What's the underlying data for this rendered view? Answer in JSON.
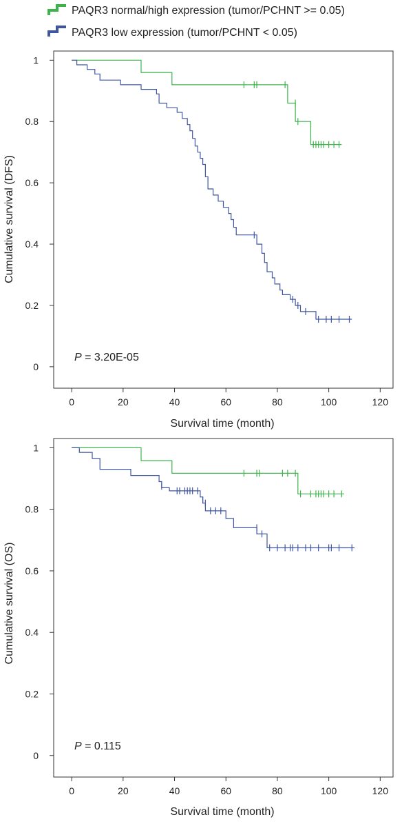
{
  "legend": {
    "items": [
      {
        "label": "PAQR3 normal/high expression (tumor/PCHNT >= 0.05)",
        "color": "#3cb44b"
      },
      {
        "label": "PAQR3 low expression (tumor/PCHNT < 0.05)",
        "color": "#3f55a0"
      }
    ]
  },
  "chart_data": [
    {
      "type": "line",
      "step": true,
      "ylabel": "Cumulative survival (DFS)",
      "xlabel": "Survival time (month)",
      "xlim": [
        -7,
        125
      ],
      "ylim": [
        -0.07,
        1.03
      ],
      "xticks": [
        0,
        20,
        40,
        60,
        80,
        100,
        120
      ],
      "yticks": [
        0,
        0.2,
        0.4,
        0.6,
        0.8,
        1
      ],
      "annotation": {
        "p_label": "P",
        "p_value": " = 3.20E-05"
      },
      "series": [
        {
          "name": "PAQR3 normal/high expression (tumor/PCHNT >= 0.05)",
          "color": "#3cb44b",
          "steps": [
            [
              0,
              1
            ],
            [
              27,
              0.96
            ],
            [
              39,
              0.92
            ],
            [
              84,
              0.86
            ],
            [
              87,
              0.8
            ],
            [
              93,
              0.725
            ],
            [
              105,
              0.725
            ]
          ],
          "censored": [
            [
              67,
              0.92
            ],
            [
              71,
              0.92
            ],
            [
              72,
              0.92
            ],
            [
              83,
              0.92
            ],
            [
              87,
              0.86
            ],
            [
              88,
              0.8
            ],
            [
              94,
              0.725
            ],
            [
              95,
              0.725
            ],
            [
              96,
              0.725
            ],
            [
              97,
              0.725
            ],
            [
              98,
              0.725
            ],
            [
              100,
              0.725
            ],
            [
              102,
              0.725
            ],
            [
              104,
              0.725
            ]
          ]
        },
        {
          "name": "PAQR3 low expression (tumor/PCHNT < 0.05)",
          "color": "#3f55a0",
          "steps": [
            [
              0,
              1
            ],
            [
              2,
              0.985
            ],
            [
              6,
              0.97
            ],
            [
              9,
              0.955
            ],
            [
              11,
              0.935
            ],
            [
              19,
              0.92
            ],
            [
              27,
              0.905
            ],
            [
              33,
              0.89
            ],
            [
              34,
              0.86
            ],
            [
              37,
              0.845
            ],
            [
              41,
              0.83
            ],
            [
              43,
              0.81
            ],
            [
              45,
              0.79
            ],
            [
              46,
              0.77
            ],
            [
              47,
              0.745
            ],
            [
              48,
              0.72
            ],
            [
              49,
              0.7
            ],
            [
              50,
              0.68
            ],
            [
              51,
              0.66
            ],
            [
              52,
              0.62
            ],
            [
              53,
              0.58
            ],
            [
              55,
              0.56
            ],
            [
              57,
              0.54
            ],
            [
              59,
              0.52
            ],
            [
              61,
              0.5
            ],
            [
              62,
              0.48
            ],
            [
              63,
              0.455
            ],
            [
              64,
              0.43
            ],
            [
              72,
              0.4
            ],
            [
              74,
              0.37
            ],
            [
              75,
              0.34
            ],
            [
              76,
              0.31
            ],
            [
              78,
              0.29
            ],
            [
              79,
              0.27
            ],
            [
              81,
              0.25
            ],
            [
              82,
              0.235
            ],
            [
              85,
              0.22
            ],
            [
              87,
              0.2
            ],
            [
              89,
              0.18
            ],
            [
              95,
              0.155
            ],
            [
              109,
              0.155
            ]
          ],
          "censored": [
            [
              71,
              0.43
            ],
            [
              86,
              0.22
            ],
            [
              88,
              0.2
            ],
            [
              91,
              0.18
            ],
            [
              96,
              0.155
            ],
            [
              99,
              0.155
            ],
            [
              101,
              0.155
            ],
            [
              104,
              0.155
            ],
            [
              108,
              0.155
            ]
          ]
        }
      ]
    },
    {
      "type": "line",
      "step": true,
      "ylabel": "Cumulative survival (OS)",
      "xlabel": "Survival time (month)",
      "xlim": [
        -7,
        125
      ],
      "ylim": [
        -0.07,
        1.03
      ],
      "xticks": [
        0,
        20,
        40,
        60,
        80,
        100,
        120
      ],
      "yticks": [
        0,
        0.2,
        0.4,
        0.6,
        0.8,
        1
      ],
      "annotation": {
        "p_label": "P",
        "p_value": " = 0.115"
      },
      "series": [
        {
          "name": "PAQR3 normal/high expression (tumor/PCHNT >= 0.05)",
          "color": "#3cb44b",
          "steps": [
            [
              0,
              1
            ],
            [
              27,
              0.958
            ],
            [
              39,
              0.917
            ],
            [
              88,
              0.85
            ],
            [
              106,
              0.85
            ]
          ],
          "censored": [
            [
              67,
              0.917
            ],
            [
              72,
              0.917
            ],
            [
              73,
              0.917
            ],
            [
              82,
              0.917
            ],
            [
              84,
              0.917
            ],
            [
              87,
              0.917
            ],
            [
              89,
              0.85
            ],
            [
              93,
              0.85
            ],
            [
              95,
              0.85
            ],
            [
              96,
              0.85
            ],
            [
              97,
              0.85
            ],
            [
              98,
              0.85
            ],
            [
              100,
              0.85
            ],
            [
              102,
              0.85
            ],
            [
              105,
              0.85
            ]
          ]
        },
        {
          "name": "PAQR3 low expression (tumor/PCHNT < 0.05)",
          "color": "#3f55a0",
          "steps": [
            [
              0,
              1
            ],
            [
              3,
              0.985
            ],
            [
              8,
              0.965
            ],
            [
              11,
              0.93
            ],
            [
              23,
              0.91
            ],
            [
              34,
              0.89
            ],
            [
              35,
              0.87
            ],
            [
              38,
              0.86
            ],
            [
              50,
              0.84
            ],
            [
              51,
              0.82
            ],
            [
              52,
              0.795
            ],
            [
              60,
              0.77
            ],
            [
              63,
              0.74
            ],
            [
              72,
              0.72
            ],
            [
              76,
              0.675
            ],
            [
              110,
              0.675
            ]
          ],
          "censored": [
            [
              35,
              0.875
            ],
            [
              41,
              0.86
            ],
            [
              42,
              0.86
            ],
            [
              44,
              0.86
            ],
            [
              45,
              0.86
            ],
            [
              46,
              0.86
            ],
            [
              47,
              0.86
            ],
            [
              49,
              0.86
            ],
            [
              51,
              0.83
            ],
            [
              52,
              0.82
            ],
            [
              54,
              0.795
            ],
            [
              56,
              0.795
            ],
            [
              58,
              0.795
            ],
            [
              72,
              0.74
            ],
            [
              74,
              0.72
            ],
            [
              77,
              0.675
            ],
            [
              80,
              0.675
            ],
            [
              83,
              0.675
            ],
            [
              85,
              0.675
            ],
            [
              86,
              0.675
            ],
            [
              88,
              0.675
            ],
            [
              91,
              0.675
            ],
            [
              93,
              0.675
            ],
            [
              96,
              0.675
            ],
            [
              100,
              0.675
            ],
            [
              101,
              0.675
            ],
            [
              104,
              0.675
            ],
            [
              109,
              0.675
            ]
          ]
        }
      ]
    }
  ]
}
